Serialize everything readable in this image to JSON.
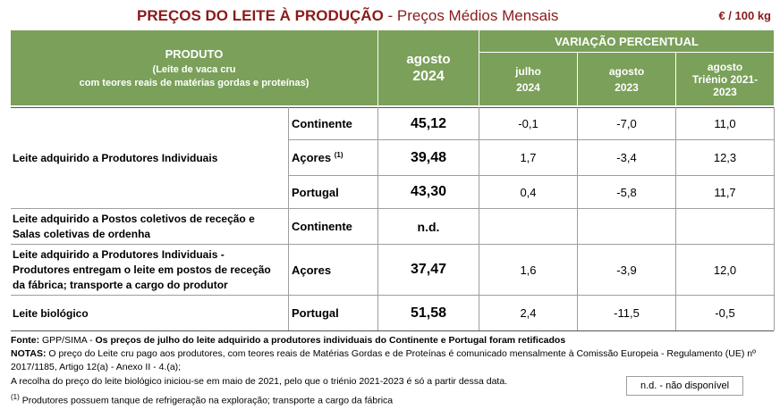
{
  "title": {
    "main": "PREÇOS DO LEITE À PRODUÇÃO",
    "sub": " - Preços Médios Mensais"
  },
  "unit": "€ / 100 kg",
  "header": {
    "produto": "PRODUTO",
    "produto_sub1": "(Leite de vaca cru",
    "produto_sub2": "com teores reais de matérias gordas e proteínas)",
    "period_month": "agosto",
    "period_year": "2024",
    "variacao": "VARIAÇÃO PERCENTUAL",
    "col1_a": "julho",
    "col1_b": "2024",
    "col2_a": "agosto",
    "col2_b": "2023",
    "col3_a": "agosto",
    "col3_b": "Triénio 2021-",
    "col3_c": "2023"
  },
  "rows": [
    {
      "product": "Leite adquirido a Produtores Individuais",
      "region": "Continente",
      "price": "45,12",
      "v1": "-0,1",
      "v2": "-7,0",
      "v3": "11,0"
    },
    {
      "product": "",
      "region": "Açores",
      "region_sup": "(1)",
      "price": "39,48",
      "v1": "1,7",
      "v2": "-3,4",
      "v3": "12,3"
    },
    {
      "product": "",
      "region": "Portugal",
      "price": "43,30",
      "v1": "0,4",
      "v2": "-5,8",
      "v3": "11,7"
    },
    {
      "product": "Leite adquirido a Postos coletivos de receção e Salas coletivas de ordenha",
      "region": "Continente",
      "price": "n.d.",
      "v1": "",
      "v2": "",
      "v3": ""
    },
    {
      "product": "Leite adquirido a Produtores Individuais - Produtores entregam o leite em postos de receção da fábrica; transporte a cargo do produtor",
      "region": "Açores",
      "price": "37,47",
      "v1": "1,6",
      "v2": "-3,9",
      "v3": "12,0"
    },
    {
      "product": "Leite biológico",
      "region": "Portugal",
      "price": "51,58",
      "v1": "2,4",
      "v2": "-11,5",
      "v3": "-0,5"
    }
  ],
  "footer": {
    "fonte_label": "Fonte: ",
    "fonte_src": "GPP/SIMA - ",
    "fonte_bold": "Os preços de julho do leite adquirido a produtores individuais do Continente e Portugal foram retificados",
    "notas_label": "NOTAS: ",
    "notas_text": "O preço do Leite cru pago aos produtores, com teores reais de Matérias Gordas e de Proteínas é comunicado mensalmente à Comissão Europeia - Regulamento (UE) nº",
    "notas_text2": "2017/1185, Artigo 12(a) - Anexo II - 4.(a);",
    "nota_bio": "A recolha do preço do leite biológico iniciou-se em maio de 2021, pelo que o triénio 2021-2023 é só a partir dessa data.",
    "nota1_sup": "(1)",
    "nota1_text": " Produtores possuem tanque de refrigeração na exploração; transporte a cargo da fábrica",
    "nd_legend": "n.d. - não disponível"
  }
}
